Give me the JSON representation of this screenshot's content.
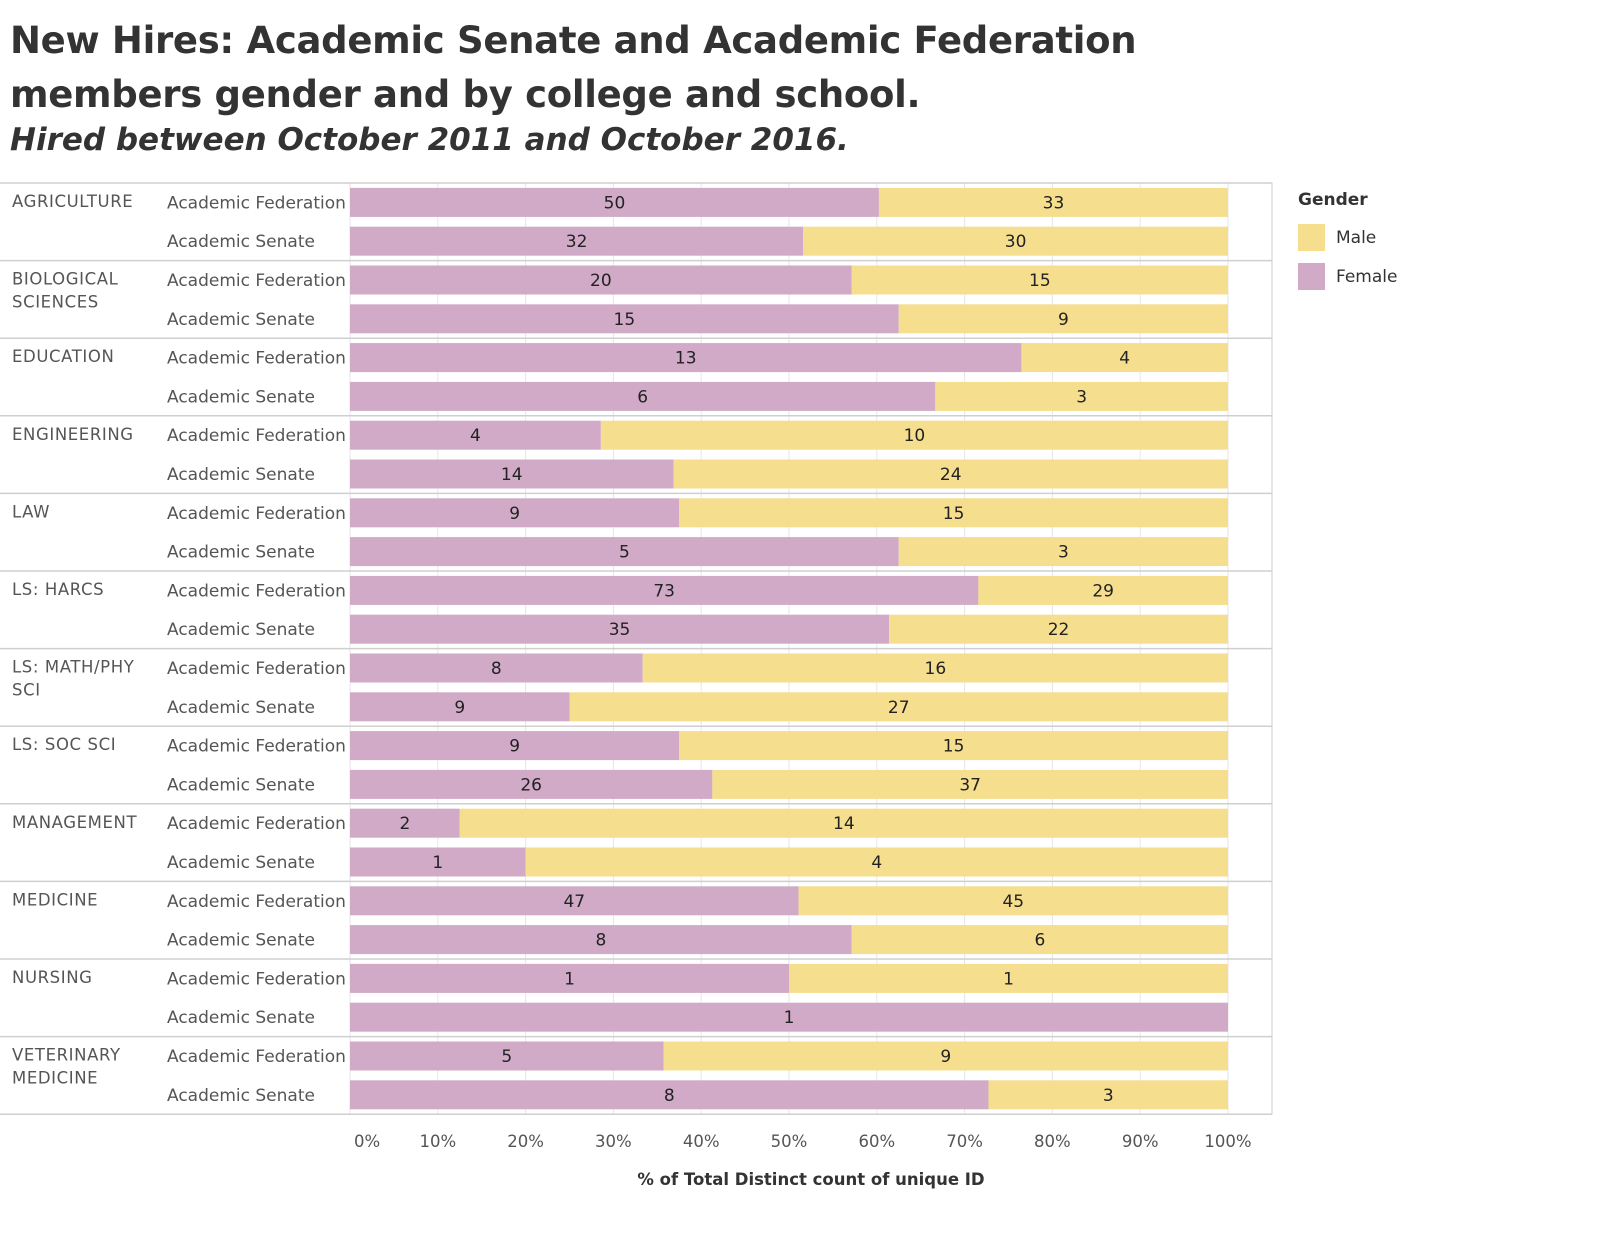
{
  "title": "New Hires: Academic Senate and Academic Federation members gender and by college and school.",
  "subtitle": "Hired between October 2011 and October 2016.",
  "legend": {
    "title": "Gender",
    "items": [
      {
        "label": "Male",
        "color": "#f5de8e"
      },
      {
        "label": "Female",
        "color": "#d0aac6"
      }
    ]
  },
  "chart_data": {
    "type": "bar",
    "orientation": "horizontal",
    "stacked": "100%",
    "xlabel": "% of Total Distinct count of unique ID",
    "x_ticks": [
      "0%",
      "10%",
      "20%",
      "30%",
      "40%",
      "50%",
      "60%",
      "70%",
      "80%",
      "90%",
      "100%"
    ],
    "xlim": [
      0,
      100
    ],
    "grid": true,
    "legend_position": "right",
    "series_names": [
      "Female",
      "Male"
    ],
    "groups": [
      {
        "college": "AGRICULTURE",
        "rows": [
          {
            "category": "Academic Federation",
            "female": 50,
            "male": 33
          },
          {
            "category": "Academic Senate",
            "female": 32,
            "male": 30
          }
        ]
      },
      {
        "college": "BIOLOGICAL SCIENCES",
        "rows": [
          {
            "category": "Academic Federation",
            "female": 20,
            "male": 15
          },
          {
            "category": "Academic Senate",
            "female": 15,
            "male": 9
          }
        ]
      },
      {
        "college": "EDUCATION",
        "rows": [
          {
            "category": "Academic Federation",
            "female": 13,
            "male": 4
          },
          {
            "category": "Academic Senate",
            "female": 6,
            "male": 3
          }
        ]
      },
      {
        "college": "ENGINEERING",
        "rows": [
          {
            "category": "Academic Federation",
            "female": 4,
            "male": 10
          },
          {
            "category": "Academic Senate",
            "female": 14,
            "male": 24
          }
        ]
      },
      {
        "college": "LAW",
        "rows": [
          {
            "category": "Academic Federation",
            "female": 9,
            "male": 15
          },
          {
            "category": "Academic Senate",
            "female": 5,
            "male": 3
          }
        ]
      },
      {
        "college": "LS: HARCS",
        "rows": [
          {
            "category": "Academic Federation",
            "female": 73,
            "male": 29
          },
          {
            "category": "Academic Senate",
            "female": 35,
            "male": 22
          }
        ]
      },
      {
        "college": "LS: MATH/PHY SCI",
        "rows": [
          {
            "category": "Academic Federation",
            "female": 8,
            "male": 16
          },
          {
            "category": "Academic Senate",
            "female": 9,
            "male": 27
          }
        ]
      },
      {
        "college": "LS: SOC SCI",
        "rows": [
          {
            "category": "Academic Federation",
            "female": 9,
            "male": 15
          },
          {
            "category": "Academic Senate",
            "female": 26,
            "male": 37
          }
        ]
      },
      {
        "college": "MANAGEMENT",
        "rows": [
          {
            "category": "Academic Federation",
            "female": 2,
            "male": 14
          },
          {
            "category": "Academic Senate",
            "female": 1,
            "male": 4
          }
        ]
      },
      {
        "college": "MEDICINE",
        "rows": [
          {
            "category": "Academic Federation",
            "female": 47,
            "male": 45
          },
          {
            "category": "Academic Senate",
            "female": 8,
            "male": 6
          }
        ]
      },
      {
        "college": "NURSING",
        "rows": [
          {
            "category": "Academic Federation",
            "female": 1,
            "male": 1
          },
          {
            "category": "Academic Senate",
            "female": 1,
            "male": 0
          }
        ]
      },
      {
        "college": "VETERINARY MEDICINE",
        "rows": [
          {
            "category": "Academic Federation",
            "female": 5,
            "male": 9
          },
          {
            "category": "Academic Senate",
            "female": 8,
            "male": 3
          }
        ]
      }
    ]
  }
}
